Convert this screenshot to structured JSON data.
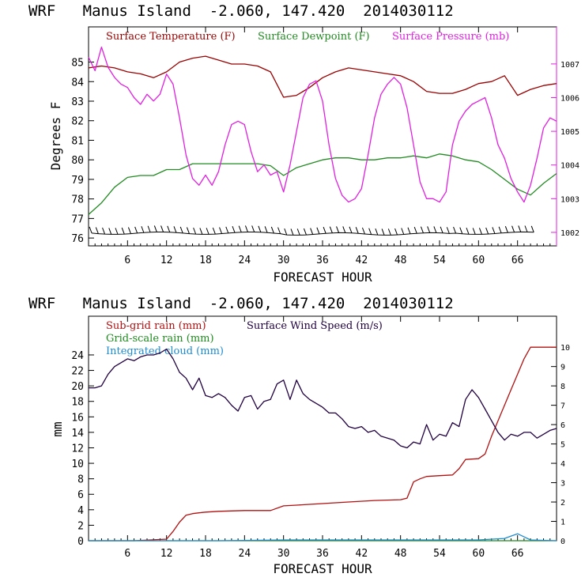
{
  "colors": {
    "temperature": "#990000",
    "dewpoint": "#228b22",
    "pressure": "#e01fe0",
    "subgrid_rain": "#b01010",
    "gridscale_rain": "#1e8b1e",
    "cloud": "#1e8bd0",
    "wind": "#200040",
    "axis": "#000000"
  },
  "chart_data": [
    {
      "type": "line",
      "title": "WRF   Manus Island  -2.060, 147.420  2014030112",
      "xlabel": "FORECAST HOUR",
      "ylabel": "Degrees F",
      "xlim": [
        0,
        72
      ],
      "ylim": [
        75.6,
        86.8
      ],
      "y2lim": [
        1001.6,
        1008.1
      ],
      "xticks": [
        "6",
        "12",
        "18",
        "24",
        "30",
        "36",
        "42",
        "48",
        "54",
        "60",
        "66"
      ],
      "yticks": [
        "76",
        "77",
        "78",
        "79",
        "80",
        "81",
        "82",
        "83",
        "84",
        "85"
      ],
      "y2ticks": [
        "1002",
        "1003",
        "1004",
        "1005",
        "1006",
        "1007"
      ],
      "series": [
        {
          "name": "Surface Temperature (F)",
          "axis": "left",
          "x": [
            0,
            2,
            4,
            6,
            8,
            10,
            12,
            14,
            16,
            18,
            20,
            22,
            24,
            26,
            28,
            30,
            32,
            34,
            36,
            38,
            40,
            42,
            44,
            46,
            48,
            50,
            52,
            54,
            56,
            58,
            60,
            62,
            64,
            66,
            68,
            70,
            72
          ],
          "y": [
            84.7,
            84.8,
            84.7,
            84.5,
            84.4,
            84.2,
            84.5,
            85.0,
            85.2,
            85.3,
            85.1,
            84.9,
            84.9,
            84.8,
            84.5,
            83.2,
            83.3,
            83.7,
            84.2,
            84.5,
            84.7,
            84.6,
            84.5,
            84.4,
            84.3,
            84.0,
            83.5,
            83.4,
            83.4,
            83.6,
            83.9,
            84.0,
            84.3,
            83.3,
            83.6,
            83.8,
            83.9
          ]
        },
        {
          "name": "Surface Dewpoint (F)",
          "axis": "left",
          "x": [
            0,
            2,
            4,
            6,
            8,
            10,
            12,
            14,
            16,
            18,
            20,
            22,
            24,
            26,
            28,
            30,
            32,
            34,
            36,
            38,
            40,
            42,
            44,
            46,
            48,
            50,
            52,
            54,
            56,
            58,
            60,
            62,
            64,
            66,
            68,
            70,
            72
          ],
          "y": [
            77.2,
            77.8,
            78.6,
            79.1,
            79.2,
            79.2,
            79.5,
            79.5,
            79.8,
            79.8,
            79.8,
            79.8,
            79.8,
            79.8,
            79.7,
            79.2,
            79.6,
            79.8,
            80.0,
            80.1,
            80.1,
            80.0,
            80.0,
            80.1,
            80.1,
            80.2,
            80.1,
            80.3,
            80.2,
            80.0,
            79.9,
            79.5,
            79.0,
            78.5,
            78.2,
            78.8,
            79.3
          ]
        },
        {
          "name": "Surface Pressure (mb)",
          "axis": "right",
          "x": [
            0,
            1,
            2,
            3,
            4,
            5,
            6,
            7,
            8,
            9,
            10,
            11,
            12,
            13,
            14,
            15,
            16,
            17,
            18,
            19,
            20,
            21,
            22,
            23,
            24,
            25,
            26,
            27,
            28,
            29,
            30,
            31,
            32,
            33,
            34,
            35,
            36,
            37,
            38,
            39,
            40,
            41,
            42,
            43,
            44,
            45,
            46,
            47,
            48,
            49,
            50,
            51,
            52,
            53,
            54,
            55,
            56,
            57,
            58,
            59,
            60,
            61,
            62,
            63,
            64,
            65,
            66,
            67,
            68,
            69,
            70,
            71,
            72
          ],
          "y": [
            1007.2,
            1006.8,
            1007.5,
            1006.9,
            1006.6,
            1006.4,
            1006.3,
            1006.0,
            1005.8,
            1006.1,
            1005.9,
            1006.1,
            1006.7,
            1006.4,
            1005.4,
            1004.3,
            1003.6,
            1003.4,
            1003.7,
            1003.4,
            1003.8,
            1004.6,
            1005.2,
            1005.3,
            1005.2,
            1004.4,
            1003.8,
            1004.0,
            1003.7,
            1003.8,
            1003.2,
            1004.0,
            1005.0,
            1006.0,
            1006.4,
            1006.5,
            1005.9,
            1004.6,
            1003.6,
            1003.1,
            1002.9,
            1003.0,
            1003.3,
            1004.3,
            1005.4,
            1006.1,
            1006.4,
            1006.6,
            1006.4,
            1005.7,
            1004.6,
            1003.5,
            1003.0,
            1003.0,
            1002.9,
            1003.2,
            1004.6,
            1005.3,
            1005.6,
            1005.8,
            1005.9,
            1006.0,
            1005.4,
            1004.6,
            1004.2,
            1003.6,
            1003.2,
            1002.9,
            1003.4,
            1004.2,
            1005.1,
            1005.4,
            1005.3
          ]
        }
      ],
      "wind_barbs": {
        "description": "Wind barbs plotted along the bottom of the upper panel",
        "x": [
          0.5,
          1.5,
          2.5,
          3.5,
          4.5,
          5.5,
          6.5,
          7.5,
          8.5,
          9.5,
          10.5,
          11.5,
          12.5,
          13.5,
          14.5,
          15.5,
          16.5,
          17.5,
          18.5,
          19.5,
          20.5,
          21.5,
          22.5,
          23.5,
          24.5,
          25.5,
          26.5,
          27.5,
          28.5,
          29.5,
          30.5,
          31.5,
          32.5,
          33.5,
          34.5,
          35.5,
          36.5,
          37.5,
          38.5,
          39.5,
          40.5,
          41.5,
          42.5,
          43.5,
          44.5,
          45.5,
          46.5,
          47.5,
          48.5,
          49.5,
          50.5,
          51.5,
          52.5,
          53.5,
          54.5,
          55.5,
          56.5,
          57.5,
          58.5,
          59.5,
          60.5,
          61.5,
          62.5,
          63.5,
          64.5,
          65.5,
          66.5,
          67.5,
          68.5
        ]
      }
    },
    {
      "type": "line",
      "title": "WRF   Manus Island  -2.060, 147.420  2014030112",
      "xlabel": "FORECAST HOUR",
      "ylabel": "mm",
      "xlim": [
        0,
        72
      ],
      "ylim": [
        0,
        29
      ],
      "y2lim": [
        0,
        11.6
      ],
      "xticks": [
        "6",
        "12",
        "18",
        "24",
        "30",
        "36",
        "42",
        "48",
        "54",
        "60",
        "66"
      ],
      "yticks": [
        "0",
        "2",
        "4",
        "6",
        "8",
        "10",
        "12",
        "14",
        "16",
        "18",
        "20",
        "22",
        "24"
      ],
      "y2ticks": [
        "0",
        "1",
        "2",
        "3",
        "4",
        "5",
        "6",
        "7",
        "8",
        "9",
        "10"
      ],
      "series": [
        {
          "name": "Sub-grid rain (mm)",
          "axis": "left",
          "x": [
            0,
            7,
            12,
            13,
            14,
            15,
            16,
            17,
            18,
            20,
            24,
            28,
            30,
            32,
            36,
            40,
            44,
            48,
            49,
            50,
            51,
            52,
            54,
            56,
            57,
            58,
            60,
            61,
            62,
            63,
            64,
            65,
            66,
            67,
            68,
            69,
            70,
            71,
            72
          ],
          "y": [
            0,
            0,
            0.2,
            1.2,
            2.4,
            3.3,
            3.5,
            3.6,
            3.7,
            3.8,
            3.9,
            3.9,
            4.5,
            4.6,
            4.8,
            5.0,
            5.2,
            5.3,
            5.5,
            7.6,
            8.0,
            8.3,
            8.4,
            8.5,
            9.3,
            10.5,
            10.6,
            11.2,
            13.5,
            15.5,
            17.5,
            19.5,
            21.5,
            23.5,
            25.0,
            25.0,
            25.0,
            25.0,
            25.0
          ]
        },
        {
          "name": "Grid-scale rain (mm)",
          "axis": "left",
          "x": [
            0,
            72
          ],
          "y": [
            0,
            0
          ]
        },
        {
          "name": "Integrated cloud (mm)",
          "axis": "left",
          "x": [
            0,
            10,
            20,
            30,
            40,
            50,
            60,
            64,
            65,
            66,
            67,
            68,
            72
          ],
          "y": [
            0,
            0,
            0,
            0.1,
            0.1,
            0.1,
            0.1,
            0.3,
            0.6,
            0.9,
            0.5,
            0.1,
            0
          ]
        },
        {
          "name": "Surface Wind Speed (m/s)",
          "axis": "right",
          "x": [
            0,
            1,
            2,
            3,
            4,
            5,
            6,
            7,
            8,
            9,
            10,
            11,
            12,
            13,
            14,
            15,
            16,
            17,
            18,
            19,
            20,
            21,
            22,
            23,
            24,
            25,
            26,
            27,
            28,
            29,
            30,
            31,
            32,
            33,
            34,
            35,
            36,
            37,
            38,
            39,
            40,
            41,
            42,
            43,
            44,
            45,
            46,
            47,
            48,
            49,
            50,
            51,
            52,
            53,
            54,
            55,
            56,
            57,
            58,
            59,
            60,
            61,
            62,
            63,
            64,
            65,
            66,
            67,
            68,
            69,
            70,
            71,
            72
          ],
          "y": [
            7.9,
            7.9,
            8.0,
            8.6,
            9.0,
            9.2,
            9.4,
            9.3,
            9.5,
            9.6,
            9.6,
            9.7,
            9.9,
            9.4,
            8.7,
            8.4,
            7.8,
            8.4,
            7.5,
            7.4,
            7.6,
            7.4,
            7.0,
            6.7,
            7.4,
            7.5,
            6.8,
            7.2,
            7.3,
            8.1,
            8.3,
            7.3,
            8.3,
            7.6,
            7.3,
            7.1,
            6.9,
            6.6,
            6.6,
            6.3,
            5.9,
            5.8,
            5.9,
            5.6,
            5.7,
            5.4,
            5.3,
            5.2,
            4.9,
            4.8,
            5.1,
            5.0,
            6.0,
            5.2,
            5.5,
            5.4,
            6.1,
            5.9,
            7.3,
            7.8,
            7.4,
            6.8,
            6.2,
            5.6,
            5.2,
            5.5,
            5.4,
            5.6,
            5.6,
            5.3,
            5.5,
            5.7,
            5.8
          ]
        }
      ]
    }
  ]
}
